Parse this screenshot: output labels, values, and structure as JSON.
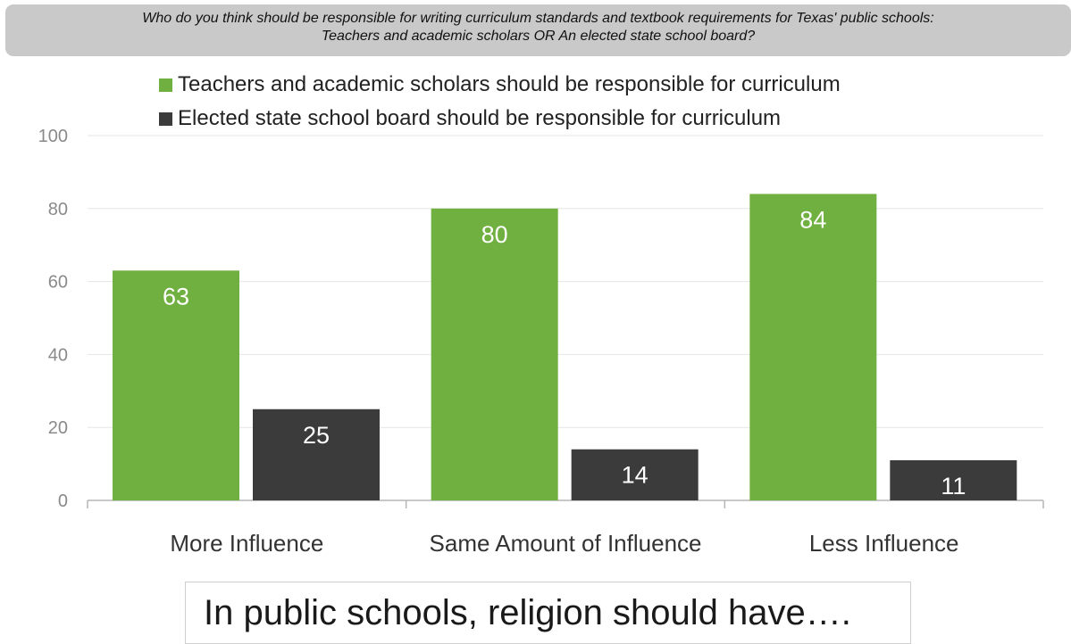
{
  "question": {
    "line1": "Who do you think should be responsible for writing curriculum standards and textbook requirements for Texas' public schools:",
    "line2": "Teachers and academic scholars OR An elected state school board?"
  },
  "footer_label": "In public schools, religion should have….",
  "chart_data": {
    "type": "bar",
    "title": "Who do you think should be responsible for writing curriculum standards and textbook requirements for Texas' public schools: Teachers and academic scholars OR An elected state school board?",
    "xlabel": "",
    "ylabel": "",
    "categories": [
      "More Influence",
      "Same Amount of Influence",
      "Less Influence"
    ],
    "series": [
      {
        "name": "Teachers and academic scholars should be responsible for curriculum",
        "color": "#6fb040",
        "values": [
          63,
          80,
          84
        ]
      },
      {
        "name": "Elected state school board should be responsible for curriculum",
        "color": "#3b3b3b",
        "values": [
          25,
          14,
          11
        ]
      }
    ],
    "ylim": [
      0,
      100
    ],
    "yticks": [
      0,
      20,
      40,
      60,
      80,
      100
    ],
    "grid": true,
    "data_labels": true,
    "legend": "top"
  }
}
